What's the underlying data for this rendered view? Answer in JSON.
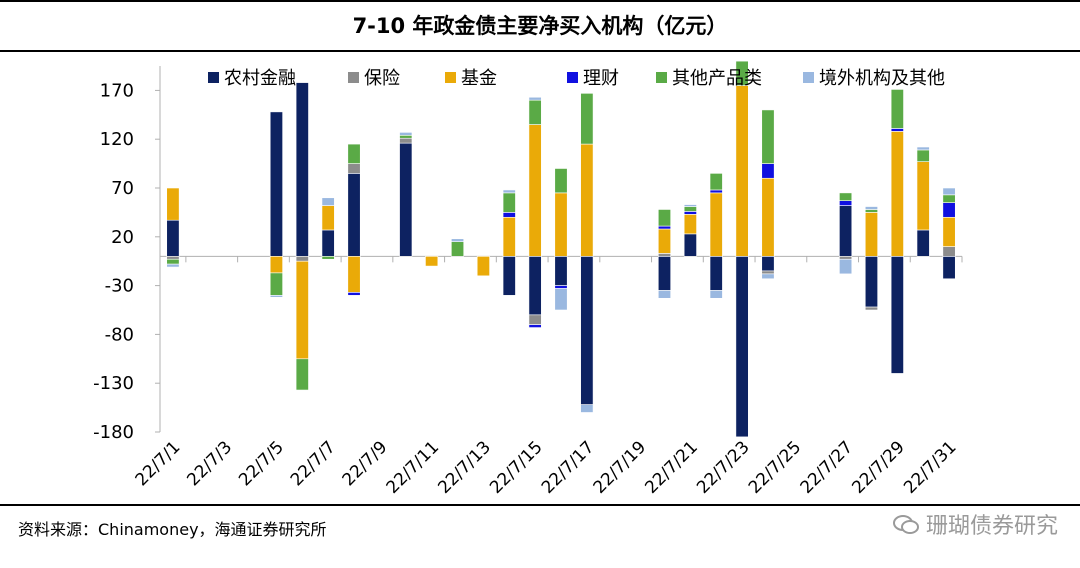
{
  "chart_data": {
    "type": "bar",
    "stacked": true,
    "title": "7-10 年政金债主要净买入机构（亿元）",
    "xlabel": "",
    "ylabel": "",
    "ylim": [
      -180,
      195
    ],
    "yticks": [
      170,
      120,
      70,
      20,
      -30,
      -80,
      -130,
      -180
    ],
    "x_tick_labels": [
      "22/7/1",
      "22/7/3",
      "22/7/5",
      "22/7/7",
      "22/7/9",
      "22/7/11",
      "22/7/13",
      "22/7/15",
      "22/7/17",
      "22/7/19",
      "22/7/21",
      "22/7/23",
      "22/7/25",
      "22/7/27",
      "22/7/29",
      "22/7/31"
    ],
    "categories": [
      "22/7/1",
      "22/7/2",
      "22/7/3",
      "22/7/4",
      "22/7/5",
      "22/7/6",
      "22/7/7",
      "22/7/8",
      "22/7/9",
      "22/7/10",
      "22/7/11",
      "22/7/12",
      "22/7/13",
      "22/7/14",
      "22/7/15",
      "22/7/16",
      "22/7/17",
      "22/7/18",
      "22/7/19",
      "22/7/20",
      "22/7/21",
      "22/7/22",
      "22/7/23",
      "22/7/24",
      "22/7/25",
      "22/7/26",
      "22/7/27",
      "22/7/28",
      "22/7/29",
      "22/7/30",
      "22/7/31"
    ],
    "legend_position": "top",
    "series": [
      {
        "name": "农村金融",
        "color": "#0d2261",
        "values": [
          37,
          0,
          0,
          0,
          148,
          178,
          27,
          85,
          0,
          116,
          0,
          0,
          0,
          -40,
          -60,
          -30,
          -152,
          0,
          0,
          -35,
          23,
          -35,
          -185,
          -15,
          0,
          0,
          52,
          -52,
          -120,
          27,
          -23
        ]
      },
      {
        "name": "保险",
        "color": "#8c8c8c",
        "values": [
          -3,
          0,
          0,
          0,
          0,
          -5,
          0,
          10,
          0,
          5,
          0,
          0,
          0,
          0,
          -10,
          0,
          0,
          0,
          0,
          3,
          0,
          0,
          0,
          -3,
          0,
          0,
          -3,
          -3,
          0,
          0,
          10
        ]
      },
      {
        "name": "基金",
        "color": "#eaaa08",
        "values": [
          33,
          0,
          0,
          0,
          -17,
          -100,
          25,
          -37,
          0,
          0,
          -10,
          0,
          -20,
          40,
          135,
          65,
          115,
          0,
          0,
          25,
          20,
          65,
          175,
          80,
          0,
          0,
          0,
          45,
          128,
          70,
          30
        ]
      },
      {
        "name": "理财",
        "color": "#1010e0",
        "values": [
          0,
          0,
          0,
          0,
          0,
          0,
          0,
          -3,
          0,
          0,
          0,
          0,
          0,
          5,
          -3,
          -3,
          0,
          0,
          0,
          3,
          3,
          3,
          0,
          15,
          0,
          0,
          5,
          0,
          3,
          0,
          15
        ]
      },
      {
        "name": "其他产品类",
        "color": "#5aaa46",
        "values": [
          -5,
          0,
          0,
          0,
          -23,
          -32,
          -3,
          20,
          0,
          3,
          0,
          15,
          0,
          20,
          25,
          25,
          52,
          0,
          0,
          17,
          5,
          17,
          25,
          55,
          0,
          0,
          8,
          3,
          40,
          12,
          8
        ]
      },
      {
        "name": "境外机构及其他",
        "color": "#9ab8e0",
        "values": [
          -3,
          0,
          0,
          0,
          -2,
          0,
          8,
          0,
          0,
          3,
          0,
          3,
          0,
          3,
          3,
          -22,
          -8,
          0,
          0,
          -8,
          2,
          -8,
          0,
          -5,
          0,
          0,
          -15,
          3,
          0,
          3,
          7
        ]
      }
    ]
  },
  "source": "资料来源：Chinamoney，海通证券研究所",
  "watermark": "珊瑚债券研究"
}
